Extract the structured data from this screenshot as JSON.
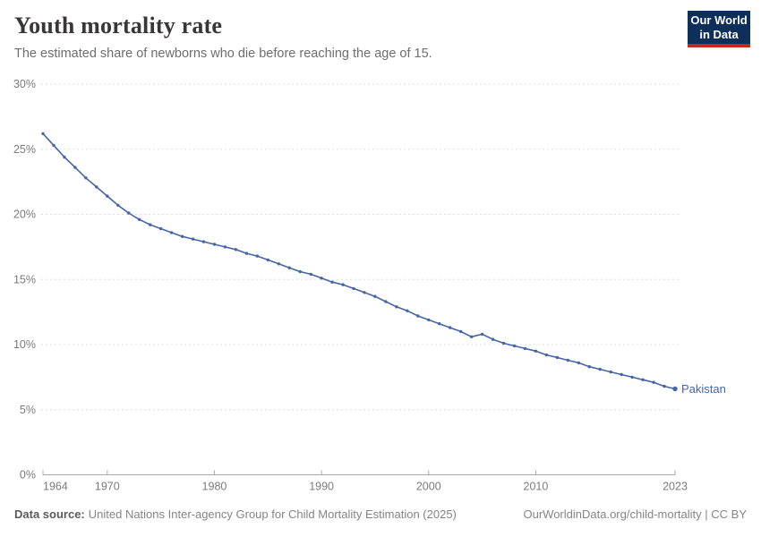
{
  "header": {
    "title": "Youth mortality rate",
    "subtitle": "The estimated share of newborns who die before reaching the age of 15.",
    "logo": {
      "line1": "Our World",
      "line2": "in Data",
      "bg_color": "#0e2f5a",
      "accent_color": "#c2281e"
    }
  },
  "chart_data": {
    "type": "line",
    "title": "Youth mortality rate",
    "subtitle": "The estimated share of newborns who die before reaching the age of 15.",
    "x": [
      1964,
      1965,
      1966,
      1967,
      1968,
      1969,
      1970,
      1971,
      1972,
      1973,
      1974,
      1975,
      1976,
      1977,
      1978,
      1979,
      1980,
      1981,
      1982,
      1983,
      1984,
      1985,
      1986,
      1987,
      1988,
      1989,
      1990,
      1991,
      1992,
      1993,
      1994,
      1995,
      1996,
      1997,
      1998,
      1999,
      2000,
      2001,
      2002,
      2003,
      2004,
      2005,
      2006,
      2007,
      2008,
      2009,
      2010,
      2011,
      2012,
      2013,
      2014,
      2015,
      2016,
      2017,
      2018,
      2019,
      2020,
      2021,
      2022,
      2023
    ],
    "series": [
      {
        "name": "Pakistan",
        "color": "#4665A5",
        "values": [
          26.2,
          25.3,
          24.4,
          23.6,
          22.8,
          22.1,
          21.4,
          20.7,
          20.1,
          19.6,
          19.2,
          18.9,
          18.6,
          18.3,
          18.1,
          17.9,
          17.7,
          17.5,
          17.3,
          17.0,
          16.8,
          16.5,
          16.2,
          15.9,
          15.6,
          15.4,
          15.1,
          14.8,
          14.6,
          14.3,
          14.0,
          13.7,
          13.3,
          12.9,
          12.6,
          12.2,
          11.9,
          11.6,
          11.3,
          11.0,
          10.6,
          10.8,
          10.4,
          10.1,
          9.9,
          9.7,
          9.5,
          9.2,
          9.0,
          8.8,
          8.6,
          8.3,
          8.1,
          7.9,
          7.7,
          7.5,
          7.3,
          7.1,
          6.8,
          6.6
        ]
      }
    ],
    "x_ticks": [
      1964,
      1970,
      1980,
      1990,
      2000,
      2010,
      2023
    ],
    "y_ticks": [
      0,
      5,
      10,
      15,
      20,
      25,
      30
    ],
    "y_unit": "%",
    "xlim": [
      1964,
      2023
    ],
    "ylim": [
      0,
      30
    ],
    "grid": "horizontal-dashed",
    "legend": "end-of-line-label",
    "grid_color": "#dddddd",
    "axis_color": "#a8a8a8"
  },
  "footer": {
    "source_label": "Data source:",
    "source_text": "United Nations Inter-agency Group for Child Mortality Estimation (2025)",
    "link_text": "OurWorldinData.org/child-mortality | CC BY"
  }
}
